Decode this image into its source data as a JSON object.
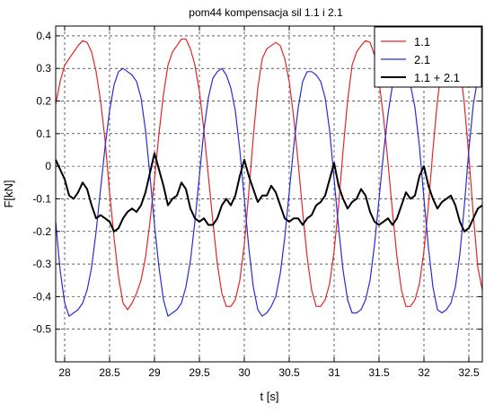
{
  "chart_data": {
    "type": "line",
    "title": "pom44  kompensacja sil 1.1 i 2.1",
    "xlabel": "t [s]",
    "ylabel": "F[kN]",
    "xlim": [
      27.9,
      32.65
    ],
    "ylim": [
      -0.6,
      0.43
    ],
    "xticks": [
      28,
      28.5,
      29,
      29.5,
      30,
      30.5,
      31,
      31.5,
      32,
      32.5
    ],
    "xtick_labels": [
      "28",
      "28.5",
      "29",
      "29.5",
      "30",
      "30.5",
      "31",
      "31.5",
      "32",
      "32.5"
    ],
    "yticks": [
      0.4,
      0.3,
      0.2,
      0.1,
      0,
      -0.1,
      -0.2,
      -0.3,
      -0.4,
      -0.5
    ],
    "ytick_labels": [
      "0.4",
      "0.3",
      "0.2",
      "0.1",
      "0",
      "-0.1",
      "-0.2",
      "-0.3",
      "-0.4",
      "-0.5"
    ],
    "grid": true,
    "grid_style": "dashed",
    "legend_position": "top-right",
    "series": [
      {
        "name": "1.1",
        "color": "#e0262a",
        "x": [
          27.9,
          27.95,
          28.0,
          28.05,
          28.1,
          28.15,
          28.2,
          28.25,
          28.3,
          28.35,
          28.4,
          28.45,
          28.5,
          28.55,
          28.6,
          28.65,
          28.7,
          28.75,
          28.8,
          28.85,
          28.9,
          28.95,
          29.0,
          29.05,
          29.1,
          29.15,
          29.2,
          29.25,
          29.3,
          29.35,
          29.4,
          29.45,
          29.5,
          29.55,
          29.6,
          29.65,
          29.7,
          29.75,
          29.8,
          29.85,
          29.9,
          29.95,
          30.0,
          30.05,
          30.1,
          30.15,
          30.2,
          30.25,
          30.3,
          30.35,
          30.4,
          30.45,
          30.5,
          30.55,
          30.6,
          30.65,
          30.7,
          30.75,
          30.8,
          30.85,
          30.9,
          30.95,
          31.0,
          31.05,
          31.1,
          31.15,
          31.2,
          31.25,
          31.3,
          31.35,
          31.4,
          31.45,
          31.5,
          31.55,
          31.6,
          31.65,
          31.7,
          31.75,
          31.8,
          31.85,
          31.9,
          31.95,
          32.0,
          32.05,
          32.1,
          32.15,
          32.2,
          32.25,
          32.3,
          32.35,
          32.4,
          32.45,
          32.5,
          32.55,
          32.6,
          32.65
        ],
        "y": [
          0.19,
          0.26,
          0.31,
          0.33,
          0.35,
          0.37,
          0.385,
          0.38,
          0.35,
          0.29,
          0.2,
          0.08,
          -0.08,
          -0.22,
          -0.34,
          -0.42,
          -0.44,
          -0.42,
          -0.39,
          -0.35,
          -0.28,
          -0.17,
          -0.04,
          0.1,
          0.22,
          0.31,
          0.35,
          0.37,
          0.39,
          0.39,
          0.36,
          0.31,
          0.23,
          0.11,
          -0.03,
          -0.17,
          -0.3,
          -0.39,
          -0.43,
          -0.43,
          -0.41,
          -0.35,
          -0.24,
          -0.08,
          0.09,
          0.24,
          0.33,
          0.36,
          0.37,
          0.38,
          0.37,
          0.33,
          0.26,
          0.15,
          0.01,
          -0.14,
          -0.28,
          -0.38,
          -0.43,
          -0.43,
          -0.41,
          -0.36,
          -0.26,
          -0.12,
          0.05,
          0.2,
          0.31,
          0.35,
          0.37,
          0.385,
          0.38,
          0.34,
          0.26,
          0.15,
          0.01,
          -0.14,
          -0.28,
          -0.38,
          -0.43,
          -0.43,
          -0.41,
          -0.36,
          -0.26,
          -0.12,
          0.05,
          0.2,
          0.31,
          0.36,
          0.38,
          0.37,
          0.31,
          0.19,
          0.03,
          -0.15,
          -0.31,
          -0.38
        ]
      },
      {
        "name": "2.1",
        "color": "#2b2bd6",
        "x": [
          27.9,
          27.95,
          28.0,
          28.05,
          28.1,
          28.15,
          28.2,
          28.25,
          28.3,
          28.35,
          28.4,
          28.45,
          28.5,
          28.55,
          28.6,
          28.65,
          28.7,
          28.75,
          28.8,
          28.85,
          28.9,
          28.95,
          29.0,
          29.05,
          29.1,
          29.15,
          29.2,
          29.25,
          29.3,
          29.35,
          29.4,
          29.45,
          29.5,
          29.55,
          29.6,
          29.65,
          29.7,
          29.75,
          29.8,
          29.85,
          29.9,
          29.95,
          30.0,
          30.05,
          30.1,
          30.15,
          30.2,
          30.25,
          30.3,
          30.35,
          30.4,
          30.45,
          30.5,
          30.55,
          30.6,
          30.65,
          30.7,
          30.75,
          30.8,
          30.85,
          30.9,
          30.95,
          31.0,
          31.05,
          31.1,
          31.15,
          31.2,
          31.25,
          31.3,
          31.35,
          31.4,
          31.45,
          31.5,
          31.55,
          31.6,
          31.65,
          31.7,
          31.75,
          31.8,
          31.85,
          31.9,
          31.95,
          32.0,
          32.05,
          32.1,
          32.15,
          32.2,
          32.25,
          32.3,
          32.35,
          32.4,
          32.45,
          32.5,
          32.55,
          32.6,
          32.65
        ],
        "y": [
          -0.17,
          -0.32,
          -0.42,
          -0.46,
          -0.45,
          -0.44,
          -0.42,
          -0.38,
          -0.31,
          -0.2,
          -0.07,
          0.06,
          0.17,
          0.25,
          0.29,
          0.3,
          0.29,
          0.28,
          0.26,
          0.21,
          0.11,
          -0.03,
          -0.18,
          -0.31,
          -0.41,
          -0.46,
          -0.45,
          -0.44,
          -0.42,
          -0.37,
          -0.29,
          -0.17,
          -0.03,
          0.11,
          0.21,
          0.27,
          0.29,
          0.3,
          0.28,
          0.24,
          0.17,
          0.05,
          -0.1,
          -0.25,
          -0.37,
          -0.44,
          -0.46,
          -0.45,
          -0.43,
          -0.4,
          -0.33,
          -0.22,
          -0.08,
          0.06,
          0.18,
          0.26,
          0.29,
          0.29,
          0.28,
          0.26,
          0.21,
          0.11,
          -0.04,
          -0.19,
          -0.32,
          -0.41,
          -0.45,
          -0.45,
          -0.44,
          -0.41,
          -0.35,
          -0.24,
          -0.1,
          0.04,
          0.16,
          0.25,
          0.29,
          0.3,
          0.28,
          0.25,
          0.18,
          0.06,
          -0.1,
          -0.25,
          -0.37,
          -0.44,
          -0.45,
          -0.44,
          -0.42,
          -0.37,
          -0.27,
          -0.12,
          0.05,
          0.19,
          0.27,
          0.28
        ]
      },
      {
        "name": "1.1 + 2.1",
        "color": "#000000",
        "x": [
          27.9,
          27.95,
          28.0,
          28.05,
          28.1,
          28.15,
          28.2,
          28.25,
          28.3,
          28.35,
          28.4,
          28.45,
          28.5,
          28.55,
          28.6,
          28.65,
          28.7,
          28.75,
          28.8,
          28.85,
          28.9,
          28.95,
          29.0,
          29.05,
          29.1,
          29.15,
          29.2,
          29.25,
          29.3,
          29.35,
          29.4,
          29.45,
          29.5,
          29.55,
          29.6,
          29.65,
          29.7,
          29.75,
          29.8,
          29.85,
          29.9,
          29.95,
          30.0,
          30.05,
          30.1,
          30.15,
          30.2,
          30.25,
          30.3,
          30.35,
          30.4,
          30.45,
          30.5,
          30.55,
          30.6,
          30.65,
          30.7,
          30.75,
          30.8,
          30.85,
          30.9,
          30.95,
          31.0,
          31.05,
          31.1,
          31.15,
          31.2,
          31.25,
          31.3,
          31.35,
          31.4,
          31.45,
          31.5,
          31.55,
          31.6,
          31.65,
          31.7,
          31.75,
          31.8,
          31.85,
          31.9,
          31.95,
          32.0,
          32.05,
          32.1,
          32.15,
          32.2,
          32.25,
          32.3,
          32.35,
          32.4,
          32.45,
          32.5,
          32.55,
          32.6,
          32.65
        ],
        "y": [
          0.02,
          -0.01,
          -0.04,
          -0.09,
          -0.1,
          -0.08,
          -0.05,
          -0.07,
          -0.12,
          -0.16,
          -0.15,
          -0.16,
          -0.17,
          -0.2,
          -0.19,
          -0.16,
          -0.14,
          -0.13,
          -0.14,
          -0.12,
          -0.08,
          -0.02,
          0.04,
          -0.01,
          -0.06,
          -0.12,
          -0.1,
          -0.09,
          -0.05,
          -0.07,
          -0.13,
          -0.16,
          -0.17,
          -0.16,
          -0.18,
          -0.18,
          -0.16,
          -0.12,
          -0.1,
          -0.12,
          -0.09,
          -0.03,
          0.02,
          -0.03,
          -0.07,
          -0.11,
          -0.09,
          -0.09,
          -0.06,
          -0.08,
          -0.12,
          -0.16,
          -0.17,
          -0.16,
          -0.16,
          -0.18,
          -0.16,
          -0.15,
          -0.12,
          -0.11,
          -0.09,
          -0.04,
          0.01,
          -0.06,
          -0.1,
          -0.13,
          -0.11,
          -0.1,
          -0.07,
          -0.09,
          -0.14,
          -0.17,
          -0.18,
          -0.17,
          -0.16,
          -0.18,
          -0.16,
          -0.12,
          -0.08,
          -0.1,
          -0.09,
          -0.03,
          0.0,
          -0.06,
          -0.1,
          -0.13,
          -0.11,
          -0.1,
          -0.09,
          -0.12,
          -0.17,
          -0.2,
          -0.19,
          -0.16,
          -0.13,
          -0.12
        ]
      }
    ]
  }
}
